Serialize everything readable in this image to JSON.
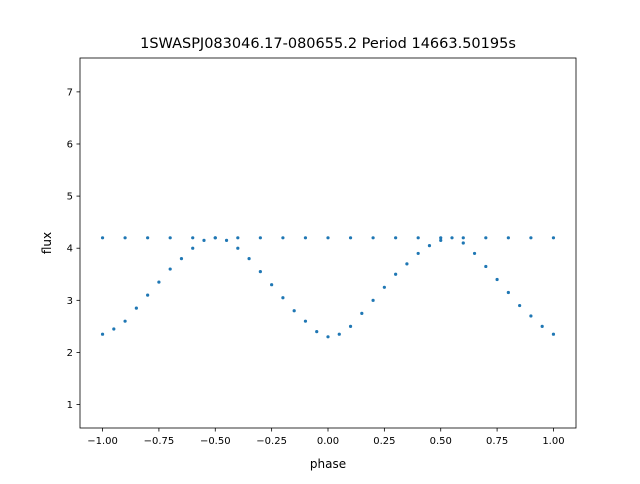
{
  "chart_data": {
    "type": "scatter",
    "title": "1SWASPJ083046.17-080655.2 Period 14663.50195s",
    "xlabel": "phase",
    "ylabel": "flux",
    "xlim": [
      -1.1,
      1.1
    ],
    "ylim": [
      0.55,
      7.65
    ],
    "xticks": [
      -1.0,
      -0.75,
      -0.5,
      -0.25,
      0.0,
      0.25,
      0.5,
      0.75,
      1.0
    ],
    "xtick_labels": [
      "−1.00",
      "−0.75",
      "−0.50",
      "−0.25",
      "0.00",
      "0.25",
      "0.50",
      "0.75",
      "1.00"
    ],
    "yticks": [
      1,
      2,
      3,
      4,
      5,
      6,
      7
    ],
    "ytick_labels": [
      "1",
      "2",
      "3",
      "4",
      "5",
      "6",
      "7"
    ],
    "grid": false,
    "point_color": "#1f77b4",
    "series": [
      {
        "points": [
          [
            -1.0,
            2.35
          ],
          [
            -0.95,
            2.45
          ],
          [
            -0.9,
            2.6
          ],
          [
            -0.85,
            2.85
          ],
          [
            -0.8,
            3.1
          ],
          [
            -0.75,
            3.35
          ],
          [
            -0.7,
            3.6
          ],
          [
            -0.65,
            3.8
          ],
          [
            -0.6,
            4.0
          ],
          [
            -0.55,
            4.15
          ],
          [
            -0.5,
            4.2
          ],
          [
            -0.45,
            4.15
          ],
          [
            -0.4,
            4.0
          ],
          [
            -0.35,
            3.8
          ],
          [
            -0.3,
            3.55
          ],
          [
            -0.25,
            3.3
          ],
          [
            -0.2,
            3.05
          ],
          [
            -0.15,
            2.8
          ],
          [
            -0.1,
            2.6
          ],
          [
            -0.05,
            2.4
          ],
          [
            0.0,
            2.3
          ],
          [
            0.05,
            2.35
          ],
          [
            0.1,
            2.5
          ],
          [
            0.15,
            2.75
          ],
          [
            0.2,
            3.0
          ],
          [
            0.25,
            3.25
          ],
          [
            0.3,
            3.5
          ],
          [
            0.35,
            3.7
          ],
          [
            0.4,
            3.9
          ],
          [
            0.45,
            4.05
          ],
          [
            0.5,
            4.15
          ],
          [
            0.55,
            4.2
          ],
          [
            0.6,
            4.1
          ],
          [
            0.65,
            3.9
          ],
          [
            0.7,
            3.65
          ],
          [
            0.75,
            3.4
          ],
          [
            0.8,
            3.15
          ],
          [
            0.85,
            2.9
          ],
          [
            0.9,
            2.7
          ],
          [
            0.95,
            2.5
          ],
          [
            1.0,
            2.35
          ]
        ]
      },
      {
        "points": [
          [
            -1.0,
            4.2
          ],
          [
            -0.9,
            4.2
          ],
          [
            -0.8,
            4.2
          ],
          [
            -0.7,
            4.2
          ],
          [
            -0.6,
            4.2
          ],
          [
            -0.5,
            4.2
          ],
          [
            -0.4,
            4.2
          ],
          [
            -0.3,
            4.2
          ],
          [
            -0.2,
            4.2
          ],
          [
            -0.1,
            4.2
          ],
          [
            0.0,
            4.2
          ],
          [
            0.1,
            4.2
          ],
          [
            0.2,
            4.2
          ],
          [
            0.3,
            4.2
          ],
          [
            0.4,
            4.2
          ],
          [
            0.5,
            4.2
          ],
          [
            0.6,
            4.2
          ],
          [
            0.7,
            4.2
          ],
          [
            0.8,
            4.2
          ],
          [
            0.9,
            4.2
          ],
          [
            1.0,
            4.2
          ]
        ]
      }
    ]
  }
}
